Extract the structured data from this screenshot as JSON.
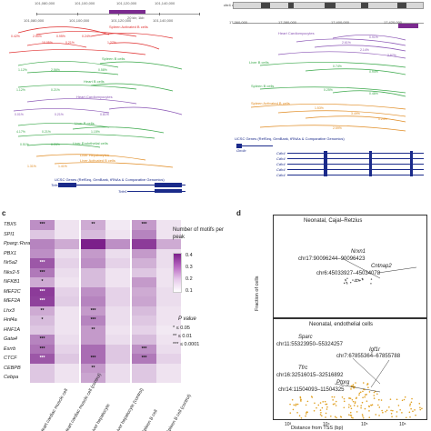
{
  "panel_a": {
    "coords_top": [
      "101,080,000",
      "101,100,000",
      "101,120,000",
      "101,140,000",
      "101,160,000"
    ],
    "coords_top2": [
      "101,080,000",
      "101,100,000",
      "101,120,000",
      "101,140,000"
    ],
    "scale": "20 kb; 1kb",
    "tracks": [
      {
        "name": "Spleen Activated B cells",
        "color": "#e03030"
      },
      {
        "name": "Spleen B cells",
        "color": "#3aa84a"
      },
      {
        "name": "Heart B cells",
        "color": "#3aa84a"
      },
      {
        "name": "Heart Cardiomyocytes",
        "color": "#8a55b5"
      },
      {
        "name": "Liver B cells",
        "color": "#3aa84a"
      },
      {
        "name": "Liver Endothelial cells",
        "color": "#3aa84a"
      },
      {
        "name": "Liver Hepatocytes",
        "color": "#e08a20"
      },
      {
        "name": "Liver Activated B cells",
        "color": "#e08a20"
      }
    ],
    "gene_track_label": "UCSC Genes (RefSeq, GenBank, tRNAs & Comparative Genomics)",
    "genes": [
      "Tcfe1",
      "Tcfe1"
    ]
  },
  "panel_b": {
    "chrom_label": "chr4 qA3",
    "coords": [
      "17,360,000",
      "17,380,000",
      "17,400,000",
      "17,420,000"
    ],
    "tracks": [
      {
        "name": "Heart Cardiomyocytes",
        "color": "#8a55b5"
      },
      {
        "name": "Liver B cells",
        "color": "#3aa84a"
      },
      {
        "name": "Spleen B cells",
        "color": "#3aa84a"
      },
      {
        "name": "Spleen Activated B cells",
        "color": "#e08a20"
      }
    ],
    "gene_track_label": "UCSC Genes (RefSeq, GenBank, tRNAs & Comparative Genomics)",
    "genes": [
      "Gm4c",
      "Cdh4",
      "Cdh4",
      "Cdh4",
      "Cdh4",
      "Cdh4"
    ]
  },
  "panel_c": {
    "letter": "c",
    "rows": [
      "TBX5",
      "SPI1",
      "Pparg::Rxra",
      "PBX1",
      "Nr5a2",
      "Nkx2-5",
      "NFKB1",
      "MEF2C",
      "MEF2A",
      "Lhx3",
      "Hnf4a",
      "HNF1A",
      "Gata4",
      "Esrrb",
      "CTCF",
      "CEBPB",
      "Cebpa"
    ],
    "columns": [
      "Heart cardiac muscle cell",
      "Heart cardiac muscle cell (control)",
      "Liver hepatocyte",
      "Liver hepatocyte (control)",
      "Spleen B cell",
      "Spleen B cell (control)"
    ],
    "legend_title": "Number of motifs per peak",
    "legend_ticks": [
      "0.4",
      "0.3",
      "0.2",
      "0.1"
    ],
    "pvalue_title": "P value",
    "pvalue_rows": [
      "*    ≤ 0.05",
      "**   ≤ 0.01",
      "***  ≤ 0.0001"
    ]
  },
  "chart_data": {
    "type": "heatmap",
    "rows": [
      "TBX5",
      "SPI1",
      "Pparg::Rxra",
      "PBX1",
      "Nr5a2",
      "Nkx2-5",
      "NFKB1",
      "MEF2C",
      "MEF2A",
      "Lhx3",
      "Hnf4a",
      "HNF1A",
      "Gata4",
      "Esrrb",
      "CTCF",
      "CEBPB",
      "Cebpa"
    ],
    "columns": [
      "Heart cardiac muscle cell",
      "Heart cardiac muscle cell (control)",
      "Liver hepatocyte",
      "Liver hepatocyte (control)",
      "Spleen B cell",
      "Spleen B cell (control)"
    ],
    "values": [
      [
        0.2,
        0.05,
        0.15,
        0.04,
        0.18,
        0.05
      ],
      [
        0.1,
        0.05,
        0.12,
        0.05,
        0.22,
        0.05
      ],
      [
        0.22,
        0.15,
        0.4,
        0.2,
        0.35,
        0.15
      ],
      [
        0.2,
        0.06,
        0.18,
        0.06,
        0.18,
        0.06
      ],
      [
        0.3,
        0.08,
        0.2,
        0.08,
        0.14,
        0.06
      ],
      [
        0.24,
        0.06,
        0.12,
        0.05,
        0.1,
        0.05
      ],
      [
        0.15,
        0.05,
        0.12,
        0.05,
        0.18,
        0.05
      ],
      [
        0.35,
        0.08,
        0.2,
        0.08,
        0.15,
        0.06
      ],
      [
        0.34,
        0.09,
        0.22,
        0.08,
        0.16,
        0.06
      ],
      [
        0.15,
        0.05,
        0.18,
        0.06,
        0.12,
        0.05
      ],
      [
        0.12,
        0.05,
        0.22,
        0.06,
        0.1,
        0.05
      ],
      [
        0.1,
        0.05,
        0.18,
        0.05,
        0.08,
        0.04
      ],
      [
        0.22,
        0.06,
        0.18,
        0.06,
        0.12,
        0.05
      ],
      [
        0.25,
        0.08,
        0.26,
        0.1,
        0.2,
        0.06
      ],
      [
        0.3,
        0.1,
        0.26,
        0.1,
        0.24,
        0.08
      ],
      [
        0.1,
        0.05,
        0.18,
        0.06,
        0.1,
        0.05
      ],
      [
        0.1,
        0.05,
        0.16,
        0.06,
        0.1,
        0.05
      ]
    ],
    "stars": [
      [
        "***",
        "",
        "**",
        "",
        "***",
        ""
      ],
      [
        "",
        "",
        "",
        "",
        "",
        ""
      ],
      [
        "",
        "",
        "",
        "",
        "",
        ""
      ],
      [
        "",
        "",
        "",
        "",
        "",
        ""
      ],
      [
        "***",
        "",
        "",
        "",
        "",
        ""
      ],
      [
        "***",
        "",
        "",
        "",
        "",
        ""
      ],
      [
        "*",
        "",
        "",
        "",
        "",
        ""
      ],
      [
        "***",
        "",
        "",
        "",
        "",
        ""
      ],
      [
        "***",
        "",
        "",
        "",
        "",
        ""
      ],
      [
        "**",
        "",
        "***",
        "",
        "",
        ""
      ],
      [
        "*",
        "",
        "***",
        "",
        "",
        ""
      ],
      [
        "",
        "",
        "**",
        "",
        "",
        ""
      ],
      [
        "***",
        "",
        "",
        "",
        "",
        ""
      ],
      [
        "***",
        "",
        "",
        "",
        "***",
        ""
      ],
      [
        "***",
        "",
        "***",
        "",
        "***",
        ""
      ],
      [
        "",
        "",
        "**",
        "",
        "",
        ""
      ],
      [
        "",
        "",
        "",
        "",
        "",
        ""
      ]
    ],
    "legend_title": "Number of motifs per peak",
    "legend_ticks": [
      0.4,
      0.3,
      0.2,
      0.1
    ],
    "colors": {
      "low": "#ffffff",
      "high": "#7b1f8a"
    }
  },
  "panel_d": {
    "letter": "d",
    "ylabel": "Fraction of cells",
    "xlabel": "Distance from TSS (bp)",
    "x_ticks": [
      "10³",
      "10⁴",
      "10⁵",
      "10⁶"
    ],
    "top": {
      "title": "Neonatal, Cajal–Retzius",
      "annotations": [
        {
          "text": "Nrxn1",
          "italic": true
        },
        {
          "text": "chr17:90096244–90096423",
          "italic": false
        },
        {
          "text": "Cntnap2",
          "italic": true
        },
        {
          "text": "chr6:45033927–45034078",
          "italic": false
        }
      ],
      "point_color": "#555555"
    },
    "bottom": {
      "title": "Neonatal, endothelial cells",
      "annotations": [
        {
          "text": "Sparc",
          "italic": true
        },
        {
          "text": "chr11:55323950–55324257",
          "italic": false
        },
        {
          "text": "Igf1r",
          "italic": true
        },
        {
          "text": "chr7:67855364–67855788",
          "italic": false
        },
        {
          "text": "Tfrc",
          "italic": true
        },
        {
          "text": "chr16:32516015–32516892",
          "italic": false
        },
        {
          "text": "Ptprg",
          "italic": true
        },
        {
          "text": "chr14:11504093–11504325",
          "italic": false
        }
      ],
      "point_color": "#e0a020"
    }
  }
}
